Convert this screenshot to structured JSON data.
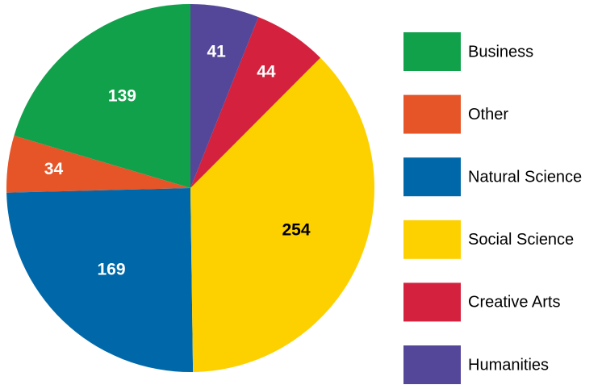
{
  "chart_data": {
    "type": "pie",
    "categories": [
      "Business",
      "Other",
      "Natural Science",
      "Social Science",
      "Creative Arts",
      "Humanities"
    ],
    "values": [
      139,
      34,
      169,
      254,
      44,
      41
    ],
    "colors": [
      "#12a14b",
      "#e55527",
      "#0068a8",
      "#fdd100",
      "#d4213d",
      "#54479a"
    ],
    "label_colors": [
      "#ffffff",
      "#ffffff",
      "#ffffff",
      "#000000",
      "#ffffff",
      "#ffffff"
    ],
    "direction": "counterclockwise",
    "legend": "right"
  }
}
